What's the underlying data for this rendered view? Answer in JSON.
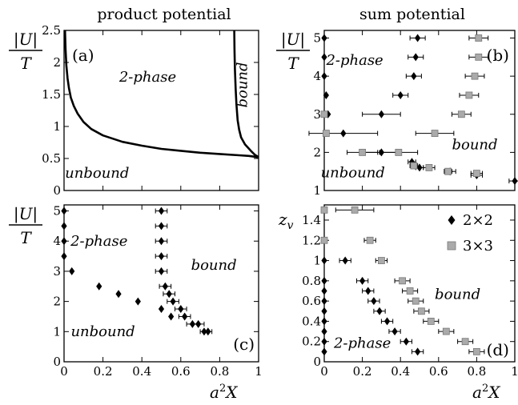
{
  "headers": {
    "left": "product potential",
    "right": "sum potential"
  },
  "axis_text": {
    "ylabel_num": "|U|",
    "ylabel_den": "T",
    "ylabel_d": "z",
    "ylabel_d_sub": "v",
    "xlabel": "a",
    "xlabel_sup": "2",
    "xlabel_tail": "X"
  },
  "legend": {
    "entries": [
      {
        "label": "2×2",
        "marker": "diamond",
        "color": "#000000"
      },
      {
        "label": "3×3",
        "marker": "square",
        "color": "#aaaaaa"
      }
    ]
  },
  "chart_data": [
    {
      "id": "a",
      "type": "line",
      "panel_label": "(a)",
      "xlim": [
        0,
        1
      ],
      "ylim": [
        0,
        2.5
      ],
      "x_ticks": [],
      "y_ticks": [
        "0",
        "0.5",
        "1",
        "1.5",
        "2",
        "2.5"
      ],
      "series": [
        {
          "x": [
            0.005,
            0.008,
            0.012,
            0.018,
            0.025,
            0.035,
            0.05,
            0.07,
            0.1,
            0.14,
            0.2,
            0.3,
            0.4,
            0.5,
            0.6,
            0.7,
            0.8,
            0.9,
            0.95,
            1.0
          ],
          "y": [
            2.5,
            2.2,
            1.95,
            1.75,
            1.6,
            1.45,
            1.32,
            1.2,
            1.07,
            0.96,
            0.86,
            0.76,
            0.7,
            0.65,
            0.62,
            0.59,
            0.57,
            0.55,
            0.54,
            0.52
          ]
        },
        {
          "x": [
            0.875,
            0.876,
            0.878,
            0.882,
            0.886,
            0.892,
            0.9,
            0.91,
            0.93,
            0.96,
            0.98,
            1.0
          ],
          "y": [
            2.5,
            2.2,
            1.9,
            1.6,
            1.35,
            1.1,
            0.95,
            0.83,
            0.72,
            0.62,
            0.56,
            0.52
          ]
        }
      ],
      "annotations": [
        {
          "text": "2-phase",
          "x": 0.43,
          "y": 1.7,
          "rotate": 0
        },
        {
          "text": "unbound",
          "x": 0.17,
          "y": 0.2,
          "rotate": 0
        },
        {
          "text": "bound",
          "x": 0.94,
          "y": 1.65,
          "rotate": -90
        }
      ]
    },
    {
      "id": "b",
      "type": "scatter",
      "panel_label": "(b)",
      "xlim": [
        0,
        1
      ],
      "ylim": [
        1,
        5.2
      ],
      "x_ticks": [],
      "y_ticks": [
        "1",
        "2",
        "3",
        "4",
        "5"
      ],
      "series": [
        {
          "name": "2×2",
          "marker": "diamond",
          "color": "#000000",
          "points": [
            [
              0.0,
              5.0,
              0
            ],
            [
              0.0,
              4.5,
              0
            ],
            [
              0.0,
              4.0,
              0
            ],
            [
              0.01,
              3.5,
              0
            ],
            [
              0.02,
              3.0,
              0
            ],
            [
              0.49,
              5.0,
              0.04
            ],
            [
              0.48,
              4.5,
              0.04
            ],
            [
              0.47,
              4.0,
              0.04
            ],
            [
              0.4,
              3.5,
              0.04
            ],
            [
              0.3,
              3.0,
              0.1
            ],
            [
              0.1,
              2.5,
              0.18
            ],
            [
              0.3,
              2.0,
              0.1
            ],
            [
              0.46,
              1.75,
              0.02
            ],
            [
              0.5,
              1.6,
              0.02
            ],
            [
              0.66,
              1.5,
              0.03
            ],
            [
              0.8,
              1.4,
              0.03
            ],
            [
              1.0,
              1.25,
              0.03
            ]
          ]
        },
        {
          "name": "3×3",
          "marker": "square",
          "color": "#aaaaaa",
          "points": [
            [
              0.0,
              3.0,
              0
            ],
            [
              0.01,
              2.5,
              0
            ],
            [
              0.81,
              5.0,
              0.05
            ],
            [
              0.81,
              4.5,
              0.05
            ],
            [
              0.79,
              4.0,
              0.05
            ],
            [
              0.76,
              3.5,
              0.05
            ],
            [
              0.72,
              3.0,
              0.05
            ],
            [
              0.58,
              2.5,
              0.1
            ],
            [
              0.2,
              2.0,
              0.08
            ],
            [
              0.39,
              2.0,
              0.1
            ],
            [
              0.47,
              1.65,
              0.02
            ],
            [
              0.55,
              1.6,
              0.03
            ],
            [
              0.65,
              1.5,
              0.02
            ],
            [
              0.8,
              1.45,
              0.03
            ]
          ]
        }
      ],
      "annotations": [
        {
          "text": "2-phase",
          "x": 0.16,
          "y": 4.3,
          "rotate": 0
        },
        {
          "text": "bound",
          "x": 0.79,
          "y": 2.08,
          "rotate": 0
        },
        {
          "text": "unbound",
          "x": 0.15,
          "y": 1.35,
          "rotate": 0
        }
      ]
    },
    {
      "id": "c",
      "type": "scatter",
      "panel_label": "(c)",
      "xlim": [
        0,
        1
      ],
      "ylim": [
        0,
        5.2
      ],
      "x_ticks": [
        "0",
        "0.2",
        "0.4",
        "0.6",
        "0.8",
        "1"
      ],
      "y_ticks": [
        "0",
        "1",
        "2",
        "3",
        "4",
        "5"
      ],
      "series": [
        {
          "name": "2×2",
          "marker": "diamond",
          "color": "#000000",
          "points": [
            [
              0.0,
              5.0,
              0
            ],
            [
              0.0,
              4.5,
              0
            ],
            [
              0.0,
              4.0,
              0
            ],
            [
              0.0,
              3.5,
              0
            ],
            [
              0.04,
              3.0,
              0
            ],
            [
              0.18,
              2.5,
              0
            ],
            [
              0.28,
              2.25,
              0
            ],
            [
              0.38,
              2.0,
              0
            ],
            [
              0.5,
              1.75,
              0
            ],
            [
              0.55,
              1.5,
              0
            ],
            [
              0.5,
              5.0,
              0.03
            ],
            [
              0.5,
              4.5,
              0.03
            ],
            [
              0.5,
              4.0,
              0.03
            ],
            [
              0.5,
              3.5,
              0.03
            ],
            [
              0.5,
              3.0,
              0.03
            ],
            [
              0.52,
              2.5,
              0.03
            ],
            [
              0.54,
              2.25,
              0.03
            ],
            [
              0.56,
              2.0,
              0.03
            ],
            [
              0.6,
              1.75,
              0.03
            ],
            [
              0.62,
              1.5,
              0.03
            ],
            [
              0.66,
              1.25,
              0.03
            ],
            [
              0.69,
              1.25,
              0.03
            ],
            [
              0.72,
              1.0,
              0.02
            ],
            [
              0.74,
              1.0,
              0.02
            ]
          ]
        }
      ],
      "annotations": [
        {
          "text": "2-phase",
          "x": 0.18,
          "y": 3.85,
          "rotate": 0
        },
        {
          "text": "bound",
          "x": 0.77,
          "y": 3.05,
          "rotate": 0
        },
        {
          "text": "unbound",
          "x": 0.2,
          "y": 0.85,
          "rotate": 0
        }
      ]
    },
    {
      "id": "d",
      "type": "scatter",
      "panel_label": "(d)",
      "xlim": [
        0,
        1
      ],
      "ylim": [
        0,
        1.55
      ],
      "x_ticks": [
        "0",
        "0.2",
        "0.4",
        "0.6",
        "0.8",
        "1"
      ],
      "y_ticks": [
        "0",
        "0.2",
        "0.4",
        "0.6",
        "0.8",
        "1",
        "1.2",
        "1.4"
      ],
      "series": [
        {
          "name": "2×2",
          "marker": "diamond",
          "color": "#000000",
          "points": [
            [
              0.0,
              1.0,
              0
            ],
            [
              0.0,
              0.8,
              0
            ],
            [
              0.0,
              0.7,
              0
            ],
            [
              0.0,
              0.6,
              0
            ],
            [
              0.0,
              0.5,
              0
            ],
            [
              0.0,
              0.4,
              0
            ],
            [
              0.0,
              0.3,
              0
            ],
            [
              0.0,
              0.2,
              0
            ],
            [
              0.0,
              0.1,
              0
            ],
            [
              0.11,
              1.0,
              0.03
            ],
            [
              0.2,
              0.8,
              0.03
            ],
            [
              0.23,
              0.7,
              0.03
            ],
            [
              0.26,
              0.6,
              0.03
            ],
            [
              0.29,
              0.5,
              0.03
            ],
            [
              0.33,
              0.4,
              0.03
            ],
            [
              0.37,
              0.3,
              0.03
            ],
            [
              0.43,
              0.2,
              0.03
            ],
            [
              0.49,
              0.1,
              0.03
            ]
          ]
        },
        {
          "name": "3×3",
          "marker": "square",
          "color": "#aaaaaa",
          "points": [
            [
              0.0,
              1.5,
              0
            ],
            [
              0.0,
              1.2,
              0
            ],
            [
              0.16,
              1.5,
              0.1
            ],
            [
              0.24,
              1.2,
              0.03
            ],
            [
              0.3,
              1.0,
              0.03
            ],
            [
              0.41,
              0.8,
              0.04
            ],
            [
              0.45,
              0.7,
              0.04
            ],
            [
              0.48,
              0.6,
              0.04
            ],
            [
              0.51,
              0.5,
              0.04
            ],
            [
              0.56,
              0.4,
              0.04
            ],
            [
              0.64,
              0.3,
              0.04
            ],
            [
              0.74,
              0.2,
              0.04
            ],
            [
              0.8,
              0.1,
              0.04
            ]
          ]
        }
      ],
      "annotations": [
        {
          "text": "bound",
          "x": 0.7,
          "y": 0.62,
          "rotate": 0
        },
        {
          "text": "2-phase",
          "x": 0.2,
          "y": 0.14,
          "rotate": 0
        }
      ]
    }
  ]
}
